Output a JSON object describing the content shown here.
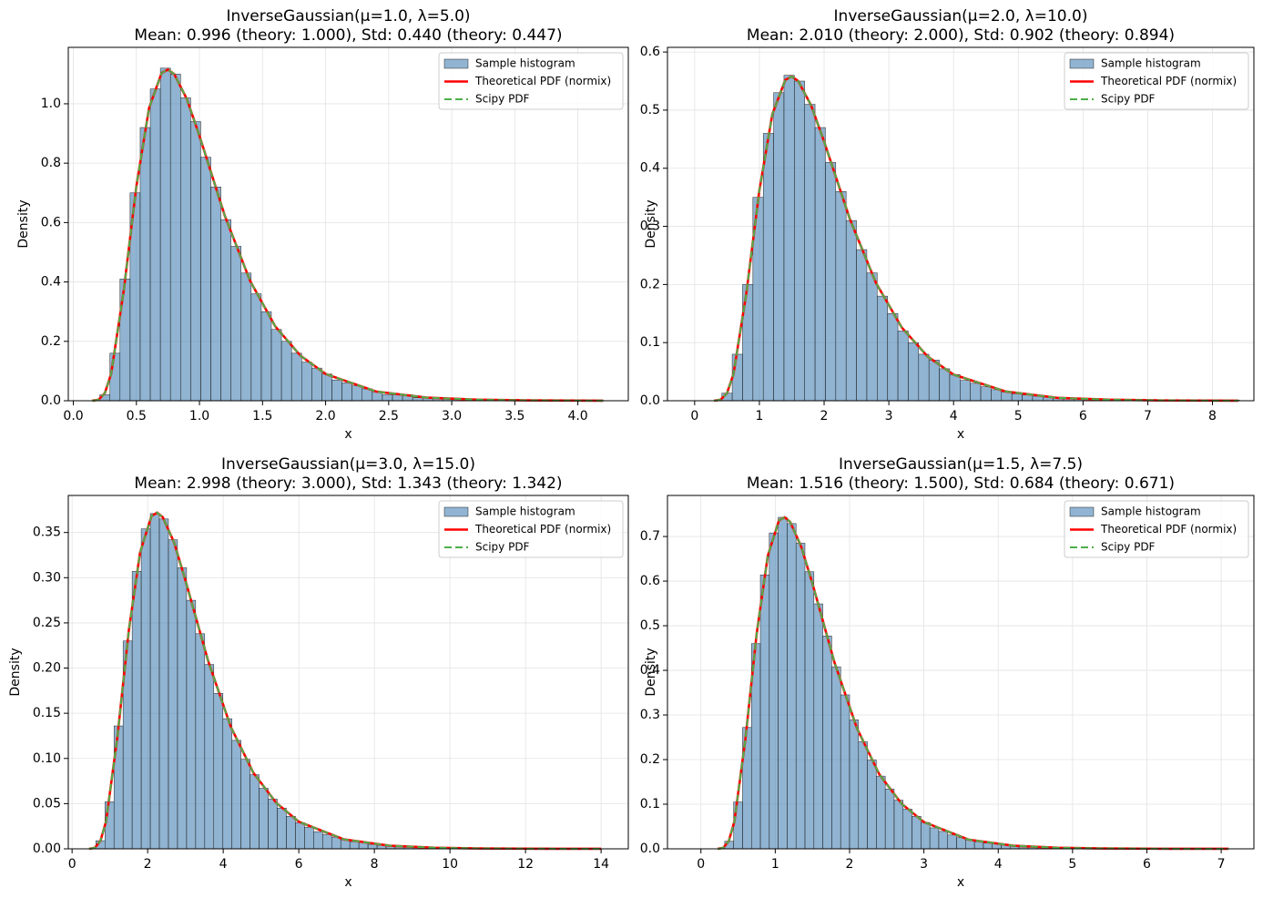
{
  "chart_data": [
    {
      "type": "histogram",
      "title": "InverseGaussian(μ=1.0, λ=5.0)",
      "subtitle": "Mean: 0.996 (theory: 1.000), Std: 0.440 (theory: 0.447)",
      "xlabel": "x",
      "ylabel": "Density",
      "grid": true,
      "legend": "upper right",
      "xlim": [
        -0.04,
        4.4
      ],
      "ylim": [
        0,
        1.19
      ],
      "xticks": [
        {
          "value": 0,
          "label": "0.0"
        },
        0.5,
        {
          "value": 1,
          "label": "1.0"
        },
        1.5,
        {
          "value": 2,
          "label": "2.0"
        },
        2.5,
        {
          "value": 3,
          "label": "3.0"
        },
        3.5,
        {
          "value": 4,
          "label": "4.0"
        }
      ],
      "yticks": [
        {
          "value": 0,
          "label": "0.0"
        },
        0.2,
        0.4,
        0.6,
        0.8,
        {
          "value": 1,
          "label": "1.0"
        }
      ],
      "histogram": {
        "name": "Sample histogram",
        "color": "#4682b4",
        "bins": [
          0.21,
          0.29,
          0.37,
          0.45,
          0.53,
          0.61,
          0.69,
          0.77,
          0.85,
          0.93,
          1.01,
          1.09,
          1.17,
          1.25,
          1.33,
          1.41,
          1.49,
          1.57,
          1.65,
          1.73,
          1.81,
          1.89,
          1.97,
          2.05,
          2.13,
          2.21,
          2.29,
          2.37,
          2.45,
          2.53,
          2.61,
          2.69,
          2.77,
          2.85,
          2.93,
          3.01,
          3.09,
          3.17,
          3.25,
          3.33,
          3.41,
          3.49,
          3.57,
          3.65,
          3.73,
          3.81,
          3.89,
          3.97,
          4.05,
          4.13,
          4.21
        ],
        "values": [
          0.02,
          0.16,
          0.41,
          0.7,
          0.92,
          1.05,
          1.12,
          1.1,
          1.02,
          0.94,
          0.82,
          0.72,
          0.61,
          0.52,
          0.43,
          0.36,
          0.3,
          0.24,
          0.2,
          0.16,
          0.13,
          0.11,
          0.09,
          0.07,
          0.06,
          0.05,
          0.04,
          0.03,
          0.02,
          0.02,
          0.02,
          0.01,
          0.01,
          0.01,
          0.007,
          0.005,
          0.004,
          0.003,
          0.003,
          0.002,
          0.002,
          0.002,
          0.001,
          0.001,
          0.001,
          0.001,
          0,
          0,
          0,
          0.001
        ]
      },
      "lines": [
        {
          "name": "Theoretical PDF (normix)",
          "color": "#ff0000",
          "style": "solid",
          "x": [
            0.15,
            0.2,
            0.25,
            0.3,
            0.4,
            0.5,
            0.6,
            0.7,
            0.75,
            0.8,
            0.9,
            1.0,
            1.2,
            1.4,
            1.6,
            1.8,
            2.0,
            2.4,
            2.8,
            3.2,
            3.6,
            4.2
          ],
          "values": [
            0.0001,
            0.0033,
            0.026,
            0.0915,
            0.372,
            0.723,
            0.985,
            1.104,
            1.115,
            1.1,
            1.016,
            0.892,
            0.624,
            0.405,
            0.251,
            0.152,
            0.0903,
            0.0311,
            0.0105,
            0.0036,
            0.0012,
            0.0002
          ]
        },
        {
          "name": "Scipy PDF",
          "color": "#4daf4a",
          "style": "dashed",
          "x": [
            0.15,
            0.2,
            0.25,
            0.3,
            0.4,
            0.5,
            0.6,
            0.7,
            0.75,
            0.8,
            0.9,
            1.0,
            1.2,
            1.4,
            1.6,
            1.8,
            2.0,
            2.4,
            2.8,
            3.2,
            3.6,
            4.2
          ],
          "values": [
            0.0001,
            0.0033,
            0.026,
            0.0915,
            0.372,
            0.723,
            0.985,
            1.104,
            1.115,
            1.1,
            1.016,
            0.892,
            0.624,
            0.405,
            0.251,
            0.152,
            0.0903,
            0.0311,
            0.0105,
            0.0036,
            0.0012,
            0.0002
          ]
        }
      ]
    },
    {
      "type": "histogram",
      "title": "InverseGaussian(μ=2.0, λ=10.0)",
      "subtitle": "Mean: 2.010 (theory: 2.000), Std: 0.902 (theory: 0.894)",
      "xlabel": "x",
      "ylabel": "Density",
      "grid": true,
      "legend": "upper right",
      "xlim": [
        -0.42,
        8.64
      ],
      "ylim": [
        0,
        0.608
      ],
      "xticks": [
        0,
        1,
        2,
        3,
        4,
        5,
        6,
        7,
        8
      ],
      "yticks": [
        {
          "value": 0,
          "label": "0.0"
        },
        0.1,
        0.2,
        0.3,
        0.4,
        0.5,
        0.6
      ],
      "histogram": {
        "name": "Sample histogram",
        "color": "#4682b4",
        "bins": [
          0.42,
          0.58,
          0.74,
          0.9,
          1.06,
          1.22,
          1.38,
          1.54,
          1.7,
          1.86,
          2.02,
          2.18,
          2.34,
          2.5,
          2.66,
          2.82,
          2.98,
          3.14,
          3.3,
          3.46,
          3.62,
          3.78,
          3.94,
          4.1,
          4.26,
          4.42,
          4.58,
          4.74,
          4.9,
          5.06,
          5.22,
          5.38,
          5.54,
          5.7,
          5.86,
          6.02,
          6.18,
          6.34,
          6.5,
          6.66,
          6.82,
          6.98,
          7.14,
          7.3,
          7.46,
          7.62,
          7.78,
          7.94,
          8.1,
          8.26,
          8.42
        ],
        "values": [
          0.013,
          0.08,
          0.2,
          0.35,
          0.46,
          0.53,
          0.56,
          0.55,
          0.51,
          0.47,
          0.41,
          0.36,
          0.31,
          0.26,
          0.22,
          0.18,
          0.15,
          0.12,
          0.1,
          0.08,
          0.07,
          0.055,
          0.045,
          0.035,
          0.03,
          0.024,
          0.019,
          0.015,
          0.012,
          0.01,
          0.008,
          0.006,
          0.005,
          0.004,
          0.003,
          0.003,
          0.002,
          0.002,
          0.001,
          0.001,
          0.001,
          0.001,
          0.001,
          0,
          0,
          0,
          0,
          0,
          0,
          0.001
        ]
      },
      "lines": [
        {
          "name": "Theoretical PDF (normix)",
          "color": "#ff0000",
          "style": "solid",
          "x": [
            0.3,
            0.4,
            0.5,
            0.6,
            0.8,
            1.0,
            1.2,
            1.4,
            1.5,
            1.6,
            1.8,
            2.0,
            2.4,
            2.8,
            3.2,
            3.6,
            4.0,
            4.8,
            5.6,
            6.4,
            7.2,
            8.4
          ],
          "values": [
            5e-05,
            0.0017,
            0.013,
            0.046,
            0.186,
            0.362,
            0.493,
            0.552,
            0.558,
            0.55,
            0.508,
            0.446,
            0.312,
            0.203,
            0.126,
            0.076,
            0.045,
            0.016,
            0.005,
            0.0018,
            0.0006,
            0.0001
          ]
        },
        {
          "name": "Scipy PDF",
          "color": "#4daf4a",
          "style": "dashed",
          "x": [
            0.3,
            0.4,
            0.5,
            0.6,
            0.8,
            1.0,
            1.2,
            1.4,
            1.5,
            1.6,
            1.8,
            2.0,
            2.4,
            2.8,
            3.2,
            3.6,
            4.0,
            4.8,
            5.6,
            6.4,
            7.2,
            8.4
          ],
          "values": [
            5e-05,
            0.0017,
            0.013,
            0.046,
            0.186,
            0.362,
            0.493,
            0.552,
            0.558,
            0.55,
            0.508,
            0.446,
            0.312,
            0.203,
            0.126,
            0.076,
            0.045,
            0.016,
            0.005,
            0.0018,
            0.0006,
            0.0001
          ]
        }
      ]
    },
    {
      "type": "histogram",
      "title": "InverseGaussian(μ=3.0, λ=15.0)",
      "subtitle": "Mean: 2.998 (theory: 3.000), Std: 1.343 (theory: 1.342)",
      "xlabel": "x",
      "ylabel": "Density",
      "grid": true,
      "legend": "upper right",
      "xlim": [
        -0.1,
        14.72
      ],
      "ylim": [
        0,
        0.391
      ],
      "xticks": [
        0,
        2,
        4,
        6,
        8,
        10,
        12,
        14
      ],
      "yticks": [
        {
          "value": 0,
          "label": "0.00"
        },
        0.05,
        {
          "value": 0.1,
          "label": "0.10"
        },
        0.15,
        {
          "value": 0.2,
          "label": "0.20"
        },
        0.25,
        {
          "value": 0.3,
          "label": "0.30"
        },
        0.35
      ],
      "histogram": {
        "name": "Sample histogram",
        "color": "#4682b4",
        "bins": [
          0.63,
          0.87,
          1.11,
          1.35,
          1.59,
          1.83,
          2.07,
          2.31,
          2.55,
          2.79,
          3.03,
          3.27,
          3.51,
          3.75,
          3.99,
          4.23,
          4.47,
          4.71,
          4.95,
          5.19,
          5.43,
          5.67,
          5.91,
          6.15,
          6.39,
          6.63,
          6.87,
          7.11,
          7.35,
          7.59,
          7.83,
          8.07,
          8.31,
          8.55,
          8.79,
          9.03,
          9.27,
          9.51,
          9.75,
          9.99,
          10.23,
          10.47,
          10.71,
          10.95,
          11.19,
          11.43,
          11.67,
          11.91,
          12.15,
          12.39,
          12.63
        ],
        "values": [
          0.009,
          0.052,
          0.136,
          0.23,
          0.307,
          0.354,
          0.371,
          0.365,
          0.342,
          0.311,
          0.275,
          0.238,
          0.204,
          0.172,
          0.144,
          0.12,
          0.099,
          0.082,
          0.067,
          0.055,
          0.045,
          0.036,
          0.029,
          0.024,
          0.019,
          0.016,
          0.013,
          0.01,
          0.008,
          0.007,
          0.005,
          0.004,
          0.003,
          0.003,
          0.002,
          0.002,
          0.001,
          0.001,
          0.001,
          0.001,
          0.001,
          0,
          0,
          0,
          0,
          0,
          0,
          0,
          0,
          0.001
        ]
      },
      "lines": [
        {
          "name": "Theoretical PDF (normix)",
          "color": "#ff0000",
          "style": "solid",
          "x": [
            0.45,
            0.6,
            0.75,
            0.9,
            1.2,
            1.5,
            1.8,
            2.1,
            2.25,
            2.4,
            2.7,
            3.0,
            3.6,
            4.2,
            4.8,
            5.4,
            6.0,
            7.2,
            8.4,
            9.6,
            10.8,
            12.6,
            14
          ],
          "values": [
            3e-05,
            0.0011,
            0.0087,
            0.0305,
            0.124,
            0.241,
            0.328,
            0.368,
            0.372,
            0.367,
            0.339,
            0.297,
            0.208,
            0.135,
            0.084,
            0.051,
            0.03,
            0.0104,
            0.0035,
            0.0012,
            0.0004,
            7e-05,
            2e-05
          ]
        },
        {
          "name": "Scipy PDF",
          "color": "#4daf4a",
          "style": "dashed",
          "x": [
            0.45,
            0.6,
            0.75,
            0.9,
            1.2,
            1.5,
            1.8,
            2.1,
            2.25,
            2.4,
            2.7,
            3.0,
            3.6,
            4.2,
            4.8,
            5.4,
            6.0,
            7.2,
            8.4,
            9.6,
            10.8,
            12.6,
            14
          ],
          "values": [
            3e-05,
            0.0011,
            0.0087,
            0.0305,
            0.124,
            0.241,
            0.328,
            0.368,
            0.372,
            0.367,
            0.339,
            0.297,
            0.208,
            0.135,
            0.084,
            0.051,
            0.03,
            0.0104,
            0.0035,
            0.0012,
            0.0004,
            7e-05,
            2e-05
          ]
        }
      ]
    },
    {
      "type": "histogram",
      "title": "InverseGaussian(μ=1.5, λ=7.5)",
      "subtitle": "Mean: 1.516 (theory: 1.500), Std: 0.684 (theory: 0.671)",
      "xlabel": "x",
      "ylabel": "Density",
      "grid": true,
      "legend": "upper right",
      "xlim": [
        -0.45,
        7.44
      ],
      "ylim": [
        0,
        0.792
      ],
      "xticks": [
        0,
        1,
        2,
        3,
        4,
        5,
        6,
        7
      ],
      "yticks": [
        {
          "value": 0,
          "label": "0.0"
        },
        0.1,
        0.2,
        0.3,
        0.4,
        0.5,
        0.6,
        0.7
      ],
      "histogram": {
        "name": "Sample histogram",
        "color": "#4682b4",
        "bins": [
          0.32,
          0.44,
          0.56,
          0.68,
          0.8,
          0.92,
          1.04,
          1.16,
          1.28,
          1.4,
          1.52,
          1.64,
          1.76,
          1.88,
          2.0,
          2.12,
          2.24,
          2.36,
          2.48,
          2.6,
          2.72,
          2.84,
          2.96,
          3.08,
          3.2,
          3.32,
          3.44,
          3.56,
          3.68,
          3.8,
          3.92,
          4.04,
          4.16,
          4.28,
          4.4,
          4.52,
          4.64,
          4.76,
          4.88,
          5.0,
          5.12,
          5.24,
          5.36,
          5.48,
          5.6,
          5.72,
          5.84,
          5.96,
          6.08,
          6.2,
          6.32
        ],
        "values": [
          0.017,
          0.105,
          0.272,
          0.46,
          0.614,
          0.708,
          0.743,
          0.729,
          0.685,
          0.621,
          0.549,
          0.477,
          0.408,
          0.345,
          0.289,
          0.24,
          0.199,
          0.163,
          0.134,
          0.109,
          0.089,
          0.073,
          0.059,
          0.047,
          0.039,
          0.031,
          0.025,
          0.02,
          0.016,
          0.013,
          0.011,
          0.009,
          0.007,
          0.005,
          0.004,
          0.004,
          0.003,
          0.002,
          0.002,
          0.001,
          0.001,
          0.001,
          0.001,
          0.001,
          0,
          0,
          0,
          0,
          0,
          0.001
        ]
      },
      "lines": [
        {
          "name": "Theoretical PDF (normix)",
          "color": "#ff0000",
          "style": "solid",
          "x": [
            0.225,
            0.3,
            0.375,
            0.45,
            0.6,
            0.75,
            0.9,
            1.05,
            1.125,
            1.2,
            1.35,
            1.5,
            1.8,
            2.1,
            2.4,
            2.7,
            3.0,
            3.6,
            4.2,
            4.8,
            5.4,
            6.3,
            7.1
          ],
          "values": [
            7e-05,
            0.0022,
            0.0173,
            0.061,
            0.248,
            0.482,
            0.657,
            0.736,
            0.743,
            0.733,
            0.677,
            0.595,
            0.416,
            0.27,
            0.167,
            0.101,
            0.06,
            0.0207,
            0.007,
            0.0024,
            0.0008,
            0.00013,
            5e-05
          ]
        },
        {
          "name": "Scipy PDF",
          "color": "#4daf4a",
          "style": "dashed",
          "x": [
            0.225,
            0.3,
            0.375,
            0.45,
            0.6,
            0.75,
            0.9,
            1.05,
            1.125,
            1.2,
            1.35,
            1.5,
            1.8,
            2.1,
            2.4,
            2.7,
            3.0,
            3.6,
            4.2,
            4.8,
            5.4,
            6.3,
            7.1
          ],
          "values": [
            7e-05,
            0.0022,
            0.0173,
            0.061,
            0.248,
            0.482,
            0.657,
            0.736,
            0.743,
            0.733,
            0.677,
            0.595,
            0.416,
            0.27,
            0.167,
            0.101,
            0.06,
            0.0207,
            0.007,
            0.0024,
            0.0008,
            0.00013,
            5e-05
          ]
        }
      ]
    }
  ]
}
